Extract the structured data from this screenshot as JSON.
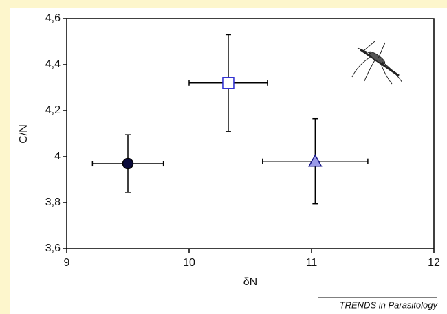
{
  "chart_data": {
    "type": "errorbar-scatter",
    "x_label": "δN",
    "y_label": "C/N",
    "xlim": [
      9,
      12
    ],
    "xticks": [
      9,
      10,
      11,
      12
    ],
    "ylim": [
      3.6,
      4.6
    ],
    "yticks": [
      {
        "value": 3.6,
        "label": "3,6"
      },
      {
        "value": 3.8,
        "label": "3,8"
      },
      4,
      {
        "value": 4.2,
        "label": "4,2"
      },
      {
        "value": 4.4,
        "label": "4,4"
      },
      {
        "value": 4.6,
        "label": "4,6"
      }
    ],
    "points": [
      {
        "x": 9.5,
        "y": 3.97,
        "xerr": 0.29,
        "yerr": 0.125,
        "marker": "circle",
        "color": "#0a0a3a",
        "edgecolor": "#000000"
      },
      {
        "x": 10.32,
        "y": 4.32,
        "xerr": 0.32,
        "yerr": 0.21,
        "marker": "square",
        "color": "#ffffff",
        "edgecolor": "#2a2ad0"
      },
      {
        "x": 11.03,
        "y": 3.98,
        "xerr": 0.43,
        "yerr": 0.185,
        "marker": "triangle",
        "color": "#9a9ae8",
        "edgecolor": "#1a1a8a"
      }
    ]
  },
  "footer": "TRENDS in Parasitology"
}
